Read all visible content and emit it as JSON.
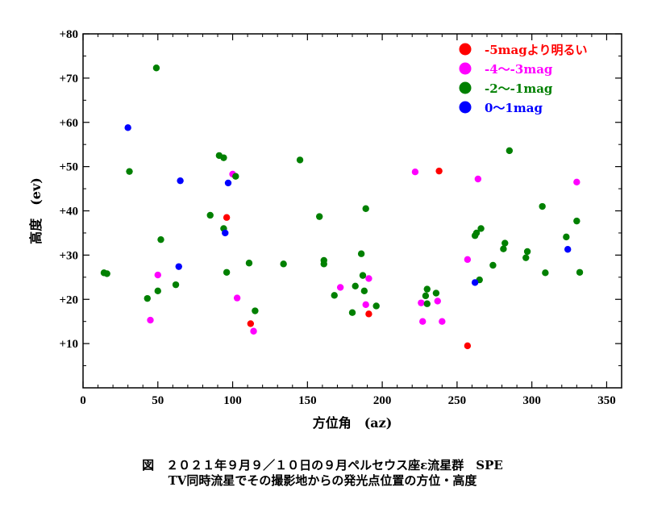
{
  "chart_data": {
    "type": "scatter",
    "xlabel": "方位角　(az)",
    "ylabel": "高度　(ev)",
    "xlim": [
      0,
      360
    ],
    "ylim": [
      0,
      80
    ],
    "xticks": [
      0,
      50,
      100,
      150,
      200,
      250,
      300,
      350
    ],
    "yticks": [
      10,
      20,
      30,
      40,
      50,
      60,
      70,
      80
    ],
    "ytick_labels": [
      "+10",
      "+20",
      "+30",
      "+40",
      "+50",
      "+60",
      "+70",
      "+80"
    ],
    "grid": false,
    "legend_position": "top-right",
    "series": [
      {
        "name": "-5magより明るい",
        "color": "#ff0000",
        "points": [
          [
            96,
            38.5
          ],
          [
            112,
            14.5
          ],
          [
            191,
            16.7
          ],
          [
            238,
            49
          ],
          [
            257,
            9.5
          ]
        ]
      },
      {
        "name": "-4〜-3mag",
        "color": "#ff00ff",
        "points": [
          [
            45,
            15.3
          ],
          [
            50,
            25.5
          ],
          [
            100,
            48.3
          ],
          [
            103,
            20.3
          ],
          [
            114,
            12.8
          ],
          [
            172,
            22.7
          ],
          [
            189,
            18.8
          ],
          [
            191,
            24.7
          ],
          [
            222,
            48.8
          ],
          [
            226,
            19.2
          ],
          [
            227,
            15
          ],
          [
            237,
            19.6
          ],
          [
            240,
            15
          ],
          [
            257,
            29
          ],
          [
            264,
            47.2
          ],
          [
            330,
            46.5
          ]
        ]
      },
      {
        "name": "-2〜-1mag",
        "color": "#008000",
        "points": [
          [
            14,
            26
          ],
          [
            16,
            25.8
          ],
          [
            31,
            48.9
          ],
          [
            43,
            20.2
          ],
          [
            49,
            72.3
          ],
          [
            50,
            21.9
          ],
          [
            52,
            33.5
          ],
          [
            62,
            23.3
          ],
          [
            85,
            39
          ],
          [
            91,
            52.5
          ],
          [
            94,
            36
          ],
          [
            94,
            52
          ],
          [
            96,
            26.1
          ],
          [
            102,
            47.8
          ],
          [
            111,
            28.2
          ],
          [
            115,
            17.4
          ],
          [
            134,
            28
          ],
          [
            145,
            51.5
          ],
          [
            158,
            38.7
          ],
          [
            161,
            28.8
          ],
          [
            161,
            28
          ],
          [
            168,
            20.9
          ],
          [
            180,
            17
          ],
          [
            182,
            23
          ],
          [
            186,
            30.3
          ],
          [
            187,
            25.4
          ],
          [
            188,
            21.9
          ],
          [
            189,
            40.5
          ],
          [
            196,
            18.5
          ],
          [
            229,
            20.8
          ],
          [
            230,
            22.3
          ],
          [
            230,
            19
          ],
          [
            236,
            21.4
          ],
          [
            262,
            34.4
          ],
          [
            263,
            35
          ],
          [
            265,
            24.4
          ],
          [
            266,
            36
          ],
          [
            274,
            27.7
          ],
          [
            281,
            31.4
          ],
          [
            282,
            32.7
          ],
          [
            285,
            53.6
          ],
          [
            296,
            29.4
          ],
          [
            297,
            30.8
          ],
          [
            307,
            41
          ],
          [
            309,
            26
          ],
          [
            323,
            34.1
          ],
          [
            330,
            37.7
          ],
          [
            332,
            26.1
          ]
        ]
      },
      {
        "name": "0〜1mag",
        "color": "#0000ff",
        "points": [
          [
            30,
            58.8
          ],
          [
            64,
            27.4
          ],
          [
            65,
            46.8
          ],
          [
            95,
            35
          ],
          [
            97,
            46.3
          ],
          [
            262,
            23.8
          ],
          [
            324,
            31.3
          ]
        ]
      }
    ]
  },
  "caption": {
    "line1": "図　２０２１年９月９／１０日の９月ペルセウス座ε流星群　SPE",
    "line2": "TV同時流星でその撮影地からの発光点位置の方位・高度"
  }
}
